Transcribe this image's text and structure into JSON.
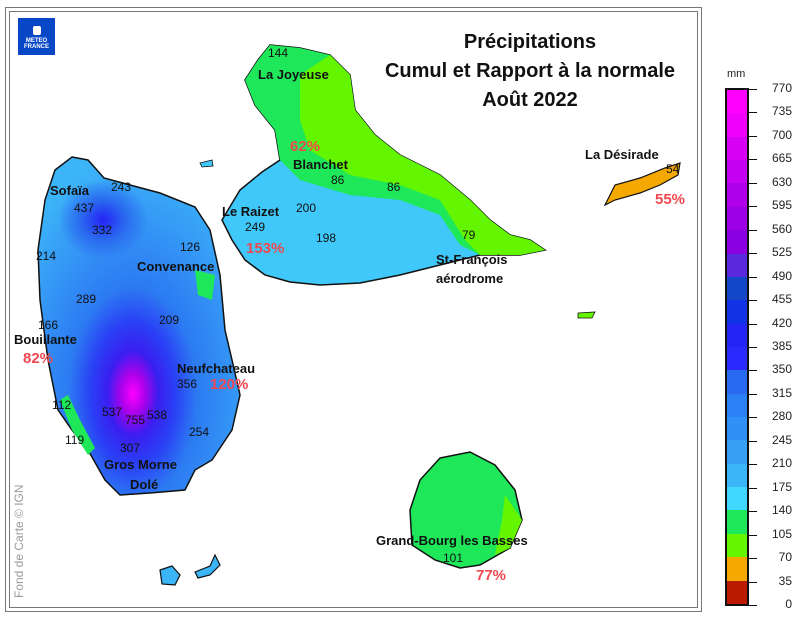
{
  "title": {
    "line1": "Précipitations",
    "line2": "Cumul et Rapport à la normale",
    "line3": "Août 2022"
  },
  "logo": {
    "line1": "METEO",
    "line2": "FRANCE"
  },
  "credit": "Fond de Carte © IGN",
  "legend": {
    "unit": "mm",
    "ticks": [
      "770",
      "735",
      "700",
      "665",
      "630",
      "595",
      "560",
      "525",
      "490",
      "455",
      "420",
      "385",
      "350",
      "315",
      "280",
      "245",
      "210",
      "175",
      "140",
      "105",
      "70",
      "35",
      "0"
    ],
    "colors": [
      "#ff00ff",
      "#f000fa",
      "#d800f5",
      "#c400f0",
      "#b000eb",
      "#9c00e6",
      "#8a00e2",
      "#5a28dd",
      "#1446c8",
      "#1232e6",
      "#2424f5",
      "#2a2aff",
      "#2a6af0",
      "#2c80f5",
      "#3090f5",
      "#36a0f5",
      "#3cb4f8",
      "#40d8ff",
      "#1ee85a",
      "#64f500",
      "#f5a800",
      "#bb1a00"
    ]
  },
  "stations": [
    {
      "name": "La Joyeuse",
      "value": "144"
    },
    {
      "name": "Blanchet",
      "value": "86",
      "ratio": "62%"
    },
    {
      "name": "Le Raizet",
      "value": "249",
      "ratio": "153%"
    },
    {
      "name": "La Désirade",
      "value": "54",
      "ratio": "55%"
    },
    {
      "name": "St-François aérodrome",
      "line1": "St-François",
      "line2": "aérodrome",
      "value": "79"
    },
    {
      "name": "Sofaïa",
      "value": "437"
    },
    {
      "name": "Convenance",
      "value": "126"
    },
    {
      "name": "Bouillante",
      "value": "166",
      "ratio": "82%"
    },
    {
      "name": "Neufchateau",
      "value": "356",
      "ratio": "120%"
    },
    {
      "name": "Gros Morne Dolé",
      "line1": "Gros Morne",
      "line2": "Dolé",
      "value": "307"
    },
    {
      "name": "Grand-Bourg les Basses",
      "value": "101",
      "ratio": "77%"
    }
  ],
  "other_values": [
    "243",
    "332",
    "214",
    "289",
    "209",
    "200",
    "198",
    "86",
    "112",
    "119",
    "537",
    "755",
    "538",
    "254"
  ]
}
